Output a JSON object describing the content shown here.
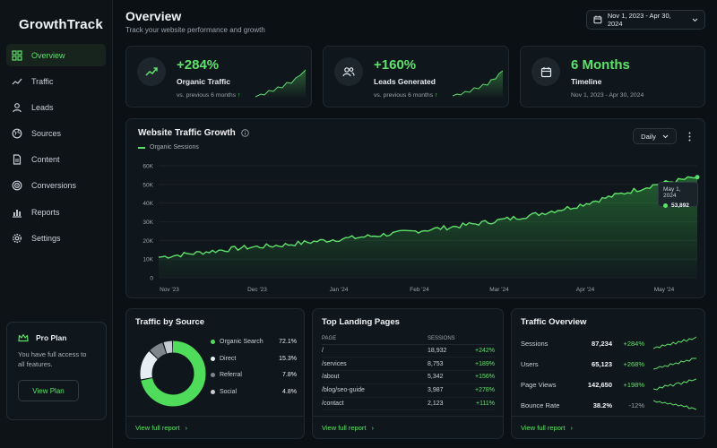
{
  "brand": {
    "name": "GrowthTrack"
  },
  "colors": {
    "accent": "#5ee16a",
    "background": "#0b1014",
    "card": "#10171c"
  },
  "sidebar": {
    "items": [
      {
        "label": "Overview",
        "icon": "dashboard-icon",
        "active": true
      },
      {
        "label": "Traffic",
        "icon": "trend-line-icon"
      },
      {
        "label": "Leads",
        "icon": "user-icon"
      },
      {
        "label": "Sources",
        "icon": "globe-icon"
      },
      {
        "label": "Content",
        "icon": "document-icon"
      },
      {
        "label": "Conversions",
        "icon": "target-icon"
      },
      {
        "label": "Reports",
        "icon": "bar-chart-icon"
      },
      {
        "label": "Settings",
        "icon": "gear-icon"
      }
    ]
  },
  "pro_plan": {
    "title": "Pro Plan",
    "text": "You have full access to all features.",
    "button": "View Plan"
  },
  "header": {
    "title": "Overview",
    "subtitle": "Track your website performance and growth",
    "date_range": "Nov 1, 2023 - Apr 30, 2024"
  },
  "kpis": [
    {
      "value": "+284%",
      "label": "Organic Traffic",
      "sub": "vs. previous 6 months",
      "icon": "trend-up-icon"
    },
    {
      "value": "+160%",
      "label": "Leads Generated",
      "sub": "vs. previous 6 months",
      "icon": "users-icon"
    },
    {
      "value": "6 Months",
      "label": "Timeline",
      "sub": "Nov 1, 2023 - Apr 30, 2024",
      "icon": "calendar-icon"
    }
  ],
  "traffic_growth": {
    "title": "Website Traffic Growth",
    "legend": "Organic Sessions",
    "period": "Daily",
    "tooltip": {
      "date": "May 1, 2024",
      "value": "53,892"
    }
  },
  "traffic_source": {
    "title": "Traffic by Source",
    "footer": "View full report",
    "items": [
      {
        "name": "Organic Search",
        "pct": "72.1%",
        "value": 72.1,
        "color": "#4fdc5a"
      },
      {
        "name": "Direct",
        "pct": "15.3%",
        "value": 15.3,
        "color": "#e6edf3"
      },
      {
        "name": "Referral",
        "pct": "7.8%",
        "value": 7.8,
        "color": "#7d868d"
      },
      {
        "name": "Social",
        "pct": "4.8%",
        "value": 4.8,
        "color": "#c5ccd2"
      }
    ]
  },
  "landing_pages": {
    "title": "Top Landing Pages",
    "footer": "View full report",
    "columns": [
      "PAGE",
      "SESSIONS",
      ""
    ],
    "rows": [
      {
        "page": "/",
        "sessions": "18,932",
        "change": "+242%"
      },
      {
        "page": "/services",
        "sessions": "8,753",
        "change": "+189%"
      },
      {
        "page": "/about",
        "sessions": "5,342",
        "change": "+156%"
      },
      {
        "page": "/blog/seo-guide",
        "sessions": "3,987",
        "change": "+278%"
      },
      {
        "page": "/contact",
        "sessions": "2,123",
        "change": "+111%"
      }
    ]
  },
  "traffic_overview": {
    "title": "Traffic Overview",
    "footer": "View full report",
    "rows": [
      {
        "name": "Sessions",
        "value": "87,234",
        "change": "+284%",
        "trend": "up"
      },
      {
        "name": "Users",
        "value": "65,123",
        "change": "+268%",
        "trend": "up"
      },
      {
        "name": "Page Views",
        "value": "142,650",
        "change": "+198%",
        "trend": "up"
      },
      {
        "name": "Bounce Rate",
        "value": "38.2%",
        "change": "-12%",
        "trend": "down"
      }
    ]
  },
  "chart_data": [
    {
      "type": "area",
      "legend": [
        "Organic Sessions"
      ],
      "x_ticks": [
        "Nov '23",
        "Dec '23",
        "Jan '24",
        "Feb '24",
        "Mar '24",
        "Apr '24",
        "May '24"
      ],
      "y_ticks": [
        "0",
        "10K",
        "20K",
        "30K",
        "40K",
        "50K",
        "60K"
      ],
      "ylim": [
        0,
        60000
      ],
      "series": [
        {
          "name": "Organic Sessions",
          "x": [
            "Nov '23",
            "Nov mid",
            "Dec '23",
            "Dec mid",
            "Jan '24",
            "Jan mid",
            "Feb '24",
            "Feb mid",
            "Mar '24",
            "Mar mid",
            "Apr '24",
            "Apr mid",
            "May '24",
            "May 1, 2024"
          ],
          "values": [
            11000,
            13500,
            16000,
            17500,
            20000,
            22000,
            24500,
            27000,
            30000,
            33500,
            38000,
            44000,
            50000,
            53892
          ]
        }
      ],
      "grid": true,
      "legend_position": "top-left"
    },
    {
      "type": "pie",
      "categories": [
        "Organic Search",
        "Direct",
        "Referral",
        "Social"
      ],
      "values": [
        72.1,
        15.3,
        7.8,
        4.8
      ]
    }
  ]
}
